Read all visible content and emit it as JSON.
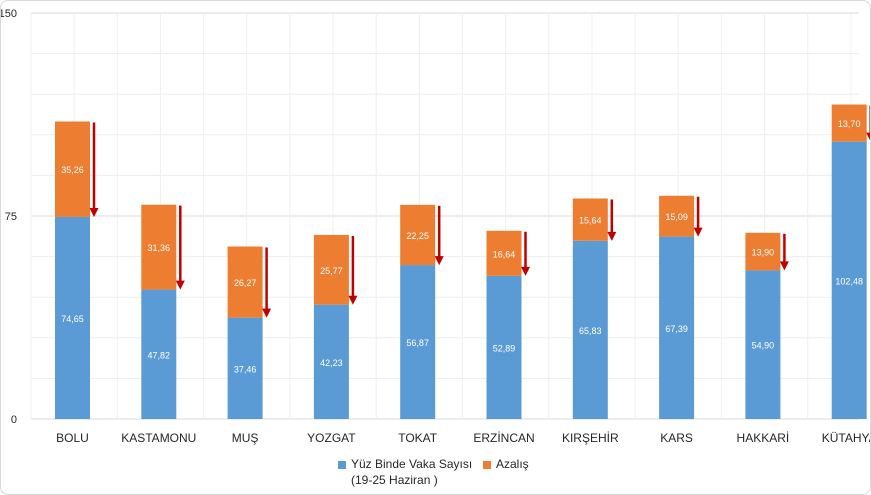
{
  "chart_data": {
    "type": "bar",
    "stacked": true,
    "categories": [
      "BOLU",
      "KASTAMONU",
      "MUŞ",
      "YOZGAT",
      "TOKAT",
      "ERZİNCAN",
      "KIRŞEHİR",
      "KARS",
      "HAKKARİ",
      "KÜTAHYA"
    ],
    "series": [
      {
        "name": "Yüz Binde Vaka Sayısı",
        "name_line2": "(19-25 Haziran )",
        "color": "#5b9bd5",
        "values": [
          74.65,
          47.82,
          37.46,
          42.23,
          56.87,
          52.89,
          65.83,
          67.39,
          54.9,
          102.48
        ],
        "labels": [
          "74,65",
          "47,82",
          "37,46",
          "42,23",
          "56,87",
          "52,89",
          "65,83",
          "67,39",
          "54,90",
          "102,48"
        ]
      },
      {
        "name": "Azalış",
        "color": "#ed7d31",
        "values": [
          35.26,
          31.36,
          26.27,
          25.77,
          22.25,
          16.64,
          15.64,
          15.09,
          13.9,
          13.7
        ],
        "labels": [
          "35,26",
          "31,36",
          "26,27",
          "25,77",
          "22,25",
          "16,64",
          "15,64",
          "15,09",
          "13,90",
          "13,70"
        ]
      }
    ],
    "ylim": [
      0,
      150
    ],
    "yticks": [
      0,
      75,
      150
    ],
    "grid": true,
    "legend_position": "bottom",
    "arrow_color": "#c00000"
  }
}
